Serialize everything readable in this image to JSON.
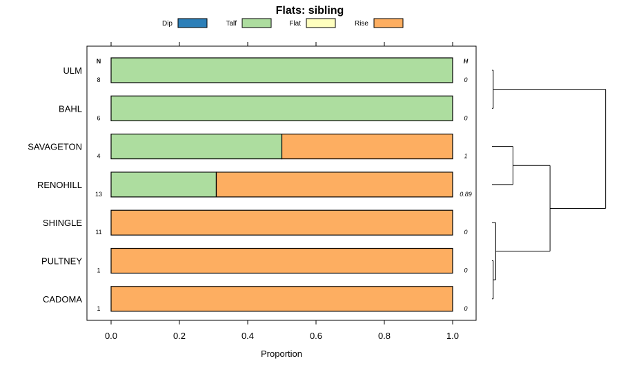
{
  "chart_data": {
    "type": "bar",
    "orientation": "horizontal",
    "stacked": true,
    "title": "Flats: sibling",
    "xlabel": "Proportion",
    "ylabel": "",
    "xlim": [
      0,
      1
    ],
    "x_ticks": [
      "0.0",
      "0.2",
      "0.4",
      "0.6",
      "0.8",
      "1.0"
    ],
    "x_tick_values": [
      0,
      0.2,
      0.4,
      0.6,
      0.8,
      1.0
    ],
    "legend": [
      {
        "name": "Dip",
        "color": "#2c7fb8"
      },
      {
        "name": "Talf",
        "color": "#addd9f"
      },
      {
        "name": "Flat",
        "color": "#ffffbf"
      },
      {
        "name": "Rise",
        "color": "#fdae61"
      }
    ],
    "legend_position": "top",
    "n_header": "N",
    "h_header": "H",
    "categories": [
      "ULM",
      "BAHL",
      "SAVAGETON",
      "RENOHILL",
      "SHINGLE",
      "PULTNEY",
      "CADOMA"
    ],
    "n": [
      "8",
      "6",
      "4",
      "13",
      "11",
      "1",
      "1"
    ],
    "h": [
      "0",
      "0",
      "1",
      "0.89",
      "0",
      "0",
      "0"
    ],
    "series": [
      {
        "name": "Dip",
        "values": [
          0,
          0,
          0,
          0,
          0,
          0,
          0
        ]
      },
      {
        "name": "Talf",
        "values": [
          1,
          1,
          0.5,
          0.308,
          0,
          0,
          0
        ]
      },
      {
        "name": "Flat",
        "values": [
          0,
          0,
          0,
          0,
          0,
          0,
          0
        ]
      },
      {
        "name": "Rise",
        "values": [
          0,
          0,
          0.5,
          0.692,
          1,
          1,
          1
        ]
      }
    ],
    "dendrogram": {
      "leaves": [
        "ULM",
        "BAHL",
        "SAVAGETON",
        "RENOHILL",
        "SHINGLE",
        "PULTNEY",
        "CADOMA"
      ],
      "merges": [
        {
          "left": "PULTNEY",
          "right": "CADOMA",
          "height": 0.01
        },
        {
          "left": "SHINGLE",
          "right": "m0",
          "height": 0.03
        },
        {
          "left": "ULM",
          "right": "BAHL",
          "height": 0.01
        },
        {
          "left": "SAVAGETON",
          "right": "RENOHILL",
          "height": 0.17
        },
        {
          "left": "m3",
          "right": "m1",
          "height": 0.47
        },
        {
          "left": "m2",
          "right": "m4",
          "height": 0.92
        }
      ],
      "max_height": 1.0
    }
  }
}
